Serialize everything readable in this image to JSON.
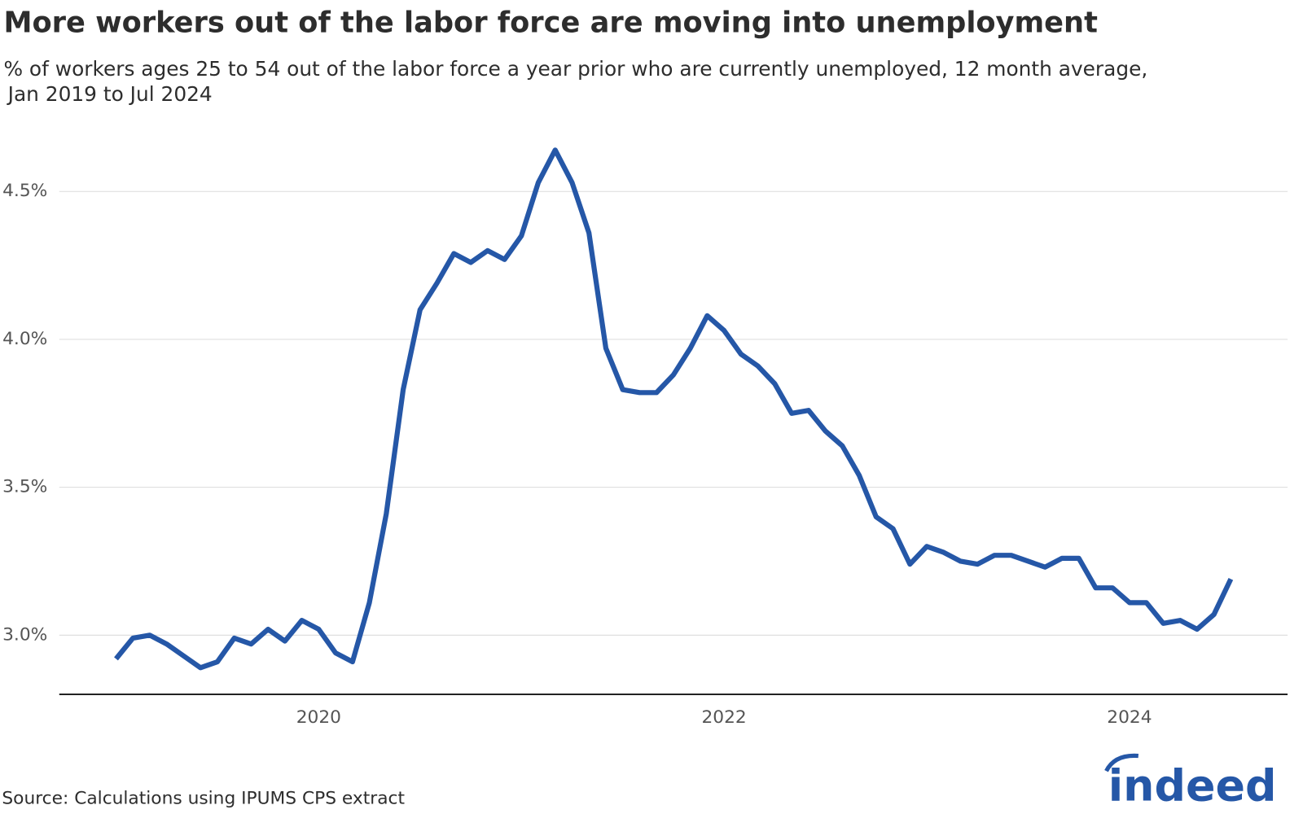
{
  "chart_data": {
    "type": "line",
    "title": "More workers out of the labor force are moving into unemployment",
    "subtitle": [
      "% of workers ages 25 to 54 out of the labor force a year prior who are currently unemployed, 12 month average,",
      "Jan 2019 to Jul 2024"
    ],
    "source": "Source: Calculations using IPUMS CPS extract",
    "logo": "indeed",
    "x": [
      2019,
      2019.0833,
      2019.1667,
      2019.25,
      2019.3333,
      2019.4167,
      2019.5,
      2019.5833,
      2019.6667,
      2019.75,
      2019.8333,
      2019.9167,
      2020,
      2020.0833,
      2020.1667,
      2020.25,
      2020.3333,
      2020.4167,
      2020.5,
      2020.5833,
      2020.6667,
      2020.75,
      2020.8333,
      2020.9167,
      2021,
      2021.0833,
      2021.1667,
      2021.25,
      2021.3333,
      2021.4167,
      2021.5,
      2021.5833,
      2021.6667,
      2021.75,
      2021.8333,
      2021.9167,
      2022,
      2022.0833,
      2022.1667,
      2022.25,
      2022.3333,
      2022.4167,
      2022.5,
      2022.5833,
      2022.6667,
      2022.75,
      2022.8333,
      2022.9167,
      2023,
      2023.0833,
      2023.1667,
      2023.25,
      2023.3333,
      2023.4167,
      2023.5,
      2023.5833,
      2023.6667,
      2023.75,
      2023.8333,
      2023.9167,
      2024,
      2024.0833,
      2024.1667,
      2024.25,
      2024.3333,
      2024.4167,
      2024.5
    ],
    "series": [
      {
        "color": "#2557a7",
        "values": [
          2.92,
          2.99,
          3.0,
          2.97,
          2.93,
          2.89,
          2.91,
          2.99,
          2.97,
          3.02,
          2.98,
          3.05,
          3.02,
          2.94,
          2.91,
          3.11,
          3.41,
          3.83,
          4.1,
          4.19,
          4.29,
          4.26,
          4.3,
          4.27,
          4.35,
          4.53,
          4.64,
          4.53,
          4.36,
          3.97,
          3.83,
          3.82,
          3.82,
          3.88,
          3.97,
          4.08,
          4.03,
          3.95,
          3.91,
          3.85,
          3.75,
          3.76,
          3.69,
          3.64,
          3.54,
          3.4,
          3.36,
          3.24,
          3.3,
          3.28,
          3.25,
          3.24,
          3.27,
          3.27,
          3.25,
          3.23,
          3.26,
          3.26,
          3.16,
          3.16,
          3.11,
          3.11,
          3.04,
          3.05,
          3.02,
          3.07,
          3.19
        ]
      }
    ],
    "xlim": [
      2018.72,
      2024.78
    ],
    "xticks": [
      2020,
      2022,
      2024
    ],
    "ylim": [
      2.8,
      4.7
    ],
    "yticks": [
      {
        "value": 3.0,
        "label": "3.0%"
      },
      {
        "value": 3.5,
        "label": "3.5%"
      },
      {
        "value": 4.0,
        "label": "4.0%"
      },
      {
        "value": 4.5,
        "label": "4.5%"
      }
    ],
    "grid": true
  }
}
